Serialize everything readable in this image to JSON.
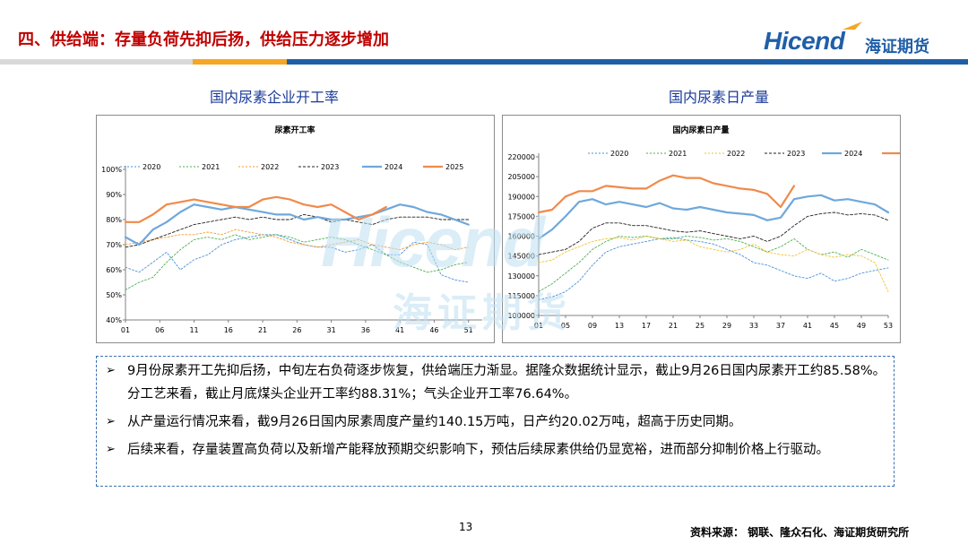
{
  "header": {
    "title": "四、供给端：存量负荷先抑后扬，供给压力逐步增加",
    "logo_text": "Hicend",
    "logo_cn": "海证期货"
  },
  "colors": {
    "title_red": "#c00000",
    "brand_blue": "#1f5fa8",
    "band_gray": "#bfbfbf",
    "band_orange": "#f5a623",
    "band_blue": "#1f5fa8"
  },
  "panel_titles": {
    "left": "国内尿素企业开工率",
    "right": "国内尿素日产量"
  },
  "chart_data": [
    {
      "type": "line",
      "title": "尿素开工率",
      "x_ticks": [
        "01",
        "06",
        "11",
        "16",
        "21",
        "26",
        "31",
        "36",
        "41",
        "46",
        "51"
      ],
      "y_ticks": [
        "40%",
        "50%",
        "60%",
        "70%",
        "80%",
        "90%",
        "100%"
      ],
      "ylim": [
        40,
        100
      ],
      "x_range": [
        1,
        53
      ],
      "legend_position": "top",
      "series": [
        {
          "name": "2020",
          "color": "#4a90d9",
          "dash": "2,2",
          "width": 0.9,
          "x": [
            1,
            3,
            5,
            7,
            9,
            11,
            13,
            15,
            17,
            19,
            21,
            23,
            25,
            27,
            29,
            31,
            33,
            35,
            37,
            39,
            41,
            43,
            45,
            47,
            49,
            51
          ],
          "values": [
            61,
            59,
            63,
            67,
            60,
            64,
            66,
            70,
            72,
            73,
            74,
            74,
            72,
            70,
            69,
            69,
            67,
            68,
            70,
            66,
            66,
            71,
            70,
            58,
            56,
            55
          ]
        },
        {
          "name": "2021",
          "color": "#4caf50",
          "dash": "2,2",
          "width": 0.9,
          "x": [
            1,
            3,
            5,
            7,
            9,
            11,
            13,
            15,
            17,
            19,
            21,
            23,
            25,
            27,
            29,
            31,
            33,
            35,
            37,
            39,
            41,
            43,
            45,
            47,
            49,
            51
          ],
          "values": [
            52,
            55,
            57,
            63,
            68,
            72,
            73,
            72,
            74,
            72,
            73,
            74,
            73,
            71,
            72,
            73,
            72,
            70,
            68,
            66,
            63,
            61,
            59,
            60,
            62,
            63
          ]
        },
        {
          "name": "2022",
          "color": "#f39c34",
          "dash": "2,2",
          "width": 0.9,
          "x": [
            1,
            3,
            5,
            7,
            9,
            11,
            13,
            15,
            17,
            19,
            21,
            23,
            25,
            27,
            29,
            31,
            33,
            35,
            37,
            39,
            41,
            43,
            45,
            47,
            49,
            51
          ],
          "values": [
            70,
            71,
            72,
            73,
            74,
            74,
            75,
            74,
            76,
            75,
            74,
            73,
            71,
            70,
            69,
            70,
            71,
            72,
            70,
            69,
            68,
            70,
            71,
            70,
            68,
            69
          ]
        },
        {
          "name": "2023",
          "color": "#222222",
          "dash": "3,2",
          "width": 0.9,
          "x": [
            1,
            3,
            5,
            7,
            9,
            11,
            13,
            15,
            17,
            19,
            21,
            23,
            25,
            27,
            29,
            31,
            33,
            35,
            37,
            39,
            41,
            43,
            45,
            47,
            49,
            51
          ],
          "values": [
            69,
            70,
            72,
            74,
            76,
            78,
            79,
            80,
            81,
            80,
            81,
            80,
            80,
            82,
            81,
            79,
            80,
            79,
            78,
            80,
            81,
            81,
            81,
            80,
            80,
            80
          ]
        },
        {
          "name": "2024",
          "color": "#6fa8dc",
          "dash": "",
          "width": 2.2,
          "x": [
            1,
            3,
            5,
            7,
            9,
            11,
            13,
            15,
            17,
            19,
            21,
            23,
            25,
            27,
            29,
            31,
            33,
            35,
            37,
            39,
            41,
            43,
            45,
            47,
            49,
            51
          ],
          "values": [
            73,
            70,
            76,
            79,
            83,
            86,
            85,
            84,
            85,
            84,
            83,
            82,
            82,
            80,
            81,
            80,
            80,
            81,
            82,
            84,
            86,
            85,
            83,
            82,
            80,
            78
          ]
        },
        {
          "name": "2025",
          "color": "#f08a4b",
          "dash": "",
          "width": 2.2,
          "x": [
            1,
            3,
            5,
            7,
            9,
            11,
            13,
            15,
            17,
            19,
            21,
            23,
            25,
            27,
            29,
            31,
            33,
            35,
            37,
            39
          ],
          "values": [
            79,
            79,
            82,
            86,
            87,
            88,
            87,
            86,
            85,
            85,
            88,
            89,
            88,
            86,
            85,
            86,
            83,
            80,
            82,
            85
          ]
        }
      ]
    },
    {
      "type": "line",
      "title": "国内尿素日产量",
      "x_ticks": [
        "01",
        "05",
        "09",
        "13",
        "17",
        "21",
        "25",
        "29",
        "33",
        "37",
        "41",
        "45",
        "49",
        "53"
      ],
      "y_ticks": [
        "100000",
        "115000",
        "130000",
        "145000",
        "160000",
        "175000",
        "190000",
        "205000",
        "220000"
      ],
      "ylim": [
        100000,
        220000
      ],
      "x_range": [
        1,
        53
      ],
      "legend_position": "top",
      "series": [
        {
          "name": "2020",
          "color": "#4a90d9",
          "dash": "2,2",
          "width": 0.9,
          "x": [
            1,
            3,
            5,
            7,
            9,
            11,
            13,
            15,
            17,
            19,
            21,
            23,
            25,
            27,
            29,
            31,
            33,
            35,
            37,
            39,
            41,
            43,
            45,
            47,
            49,
            51,
            53
          ],
          "values": [
            112000,
            114000,
            118000,
            126000,
            138000,
            148000,
            152000,
            154000,
            156000,
            158000,
            159000,
            157000,
            156000,
            154000,
            150000,
            146000,
            140000,
            138000,
            134000,
            130000,
            128000,
            132000,
            126000,
            128000,
            132000,
            134000,
            136000
          ]
        },
        {
          "name": "2021",
          "color": "#4caf50",
          "dash": "2,2",
          "width": 0.9,
          "x": [
            1,
            3,
            5,
            7,
            9,
            11,
            13,
            15,
            17,
            19,
            21,
            23,
            25,
            27,
            29,
            31,
            33,
            35,
            37,
            39,
            41,
            43,
            45,
            47,
            49,
            51,
            53
          ],
          "values": [
            118000,
            124000,
            132000,
            140000,
            150000,
            156000,
            160000,
            159000,
            160000,
            158000,
            158000,
            160000,
            159000,
            157000,
            158000,
            156000,
            152000,
            148000,
            152000,
            158000,
            150000,
            146000,
            148000,
            144000,
            150000,
            146000,
            142000
          ]
        },
        {
          "name": "2022",
          "color": "#f2c12e",
          "dash": "2,2",
          "width": 0.9,
          "x": [
            1,
            3,
            5,
            7,
            9,
            11,
            13,
            15,
            17,
            19,
            21,
            23,
            25,
            27,
            29,
            31,
            33,
            35,
            37,
            39,
            41,
            43,
            45,
            47,
            49,
            51,
            53
          ],
          "values": [
            140000,
            142000,
            148000,
            152000,
            156000,
            158000,
            159000,
            157000,
            160000,
            158000,
            156000,
            157000,
            152000,
            150000,
            148000,
            150000,
            154000,
            148000,
            146000,
            145000,
            150000,
            146000,
            144000,
            146000,
            145000,
            140000,
            118000
          ]
        },
        {
          "name": "2023",
          "color": "#222222",
          "dash": "3,2",
          "width": 0.9,
          "x": [
            1,
            3,
            5,
            7,
            9,
            11,
            13,
            15,
            17,
            19,
            21,
            23,
            25,
            27,
            29,
            31,
            33,
            35,
            37,
            39,
            41,
            43,
            45,
            47,
            49,
            51,
            53
          ],
          "values": [
            146000,
            148000,
            150000,
            156000,
            166000,
            170000,
            170000,
            168000,
            168000,
            166000,
            164000,
            163000,
            164000,
            162000,
            160000,
            158000,
            160000,
            156000,
            160000,
            168000,
            175000,
            177000,
            178000,
            176000,
            177000,
            176000,
            172000
          ]
        },
        {
          "name": "2024",
          "color": "#6fa8dc",
          "dash": "",
          "width": 2.2,
          "x": [
            1,
            3,
            5,
            7,
            9,
            11,
            13,
            15,
            17,
            19,
            21,
            23,
            25,
            27,
            29,
            31,
            33,
            35,
            37,
            39,
            41,
            43,
            45,
            47,
            49,
            51,
            53
          ],
          "values": [
            158000,
            165000,
            175000,
            186000,
            188000,
            184000,
            186000,
            184000,
            182000,
            185000,
            181000,
            180000,
            182000,
            180000,
            178000,
            177000,
            176000,
            172000,
            174000,
            188000,
            190000,
            191000,
            187000,
            188000,
            186000,
            184000,
            178000
          ]
        },
        {
          "name": "2025",
          "color": "#f08a4b",
          "dash": "",
          "width": 2.2,
          "x": [
            1,
            3,
            5,
            7,
            9,
            11,
            13,
            15,
            17,
            19,
            21,
            23,
            25,
            27,
            29,
            31,
            33,
            35,
            37,
            39
          ],
          "values": [
            178000,
            180000,
            190000,
            194000,
            194000,
            198000,
            197000,
            196000,
            196000,
            202000,
            206000,
            204000,
            204000,
            200000,
            198000,
            196000,
            195000,
            192000,
            182000,
            198000
          ]
        }
      ]
    }
  ],
  "notes": [
    {
      "marker": "➢",
      "text": "9月份尿素开工先抑后扬，中旬左右负荷逐步恢复，供给端压力渐显。据隆众数据统计显示，截止9月26日国内尿素开工约85.58%。分工艺来看，截止月底煤头企业开工率约88.31%；气头企业开工率76.64%。"
    },
    {
      "marker": "➢",
      "text": "从产量运行情况来看，截9月26日国内尿素周度产量约140.15万吨，日产约20.02万吨，超高于历史同期。"
    },
    {
      "marker": "➢",
      "text": "后续来看，存量装置高负荷以及新增产能释放预期交织影响下，预估后续尿素供给仍显宽裕，进而部分抑制价格上行驱动。"
    }
  ],
  "footer": {
    "page_number": "13",
    "source": "资料来源：  钢联、隆众石化、海证期货研究所"
  }
}
